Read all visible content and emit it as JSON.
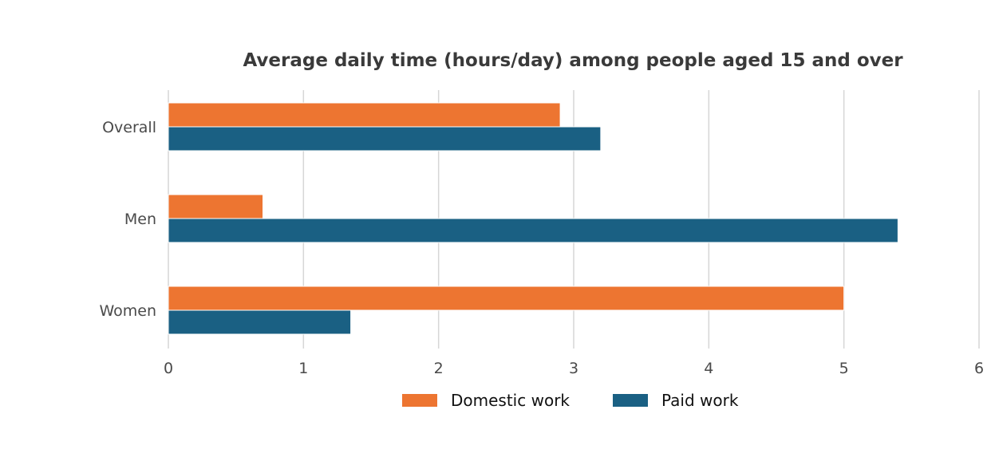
{
  "chart_data": {
    "type": "bar",
    "orientation": "horizontal",
    "title": "Average daily time (hours/day) among people aged 15 and over",
    "xlabel": "",
    "ylabel": "",
    "categories": [
      "Overall",
      "Men",
      "Women"
    ],
    "xlim": [
      0,
      6
    ],
    "xticks": [
      "0",
      "1",
      "2",
      "3",
      "4",
      "5",
      "6"
    ],
    "grid": "vertical",
    "legend_position": "bottom",
    "series": [
      {
        "name": "Domestic work",
        "color": "#ed7531",
        "values": [
          2.9,
          0.7,
          5.0
        ]
      },
      {
        "name": "Paid work",
        "color": "#1a6083",
        "values": [
          3.2,
          5.4,
          1.35
        ]
      }
    ]
  }
}
